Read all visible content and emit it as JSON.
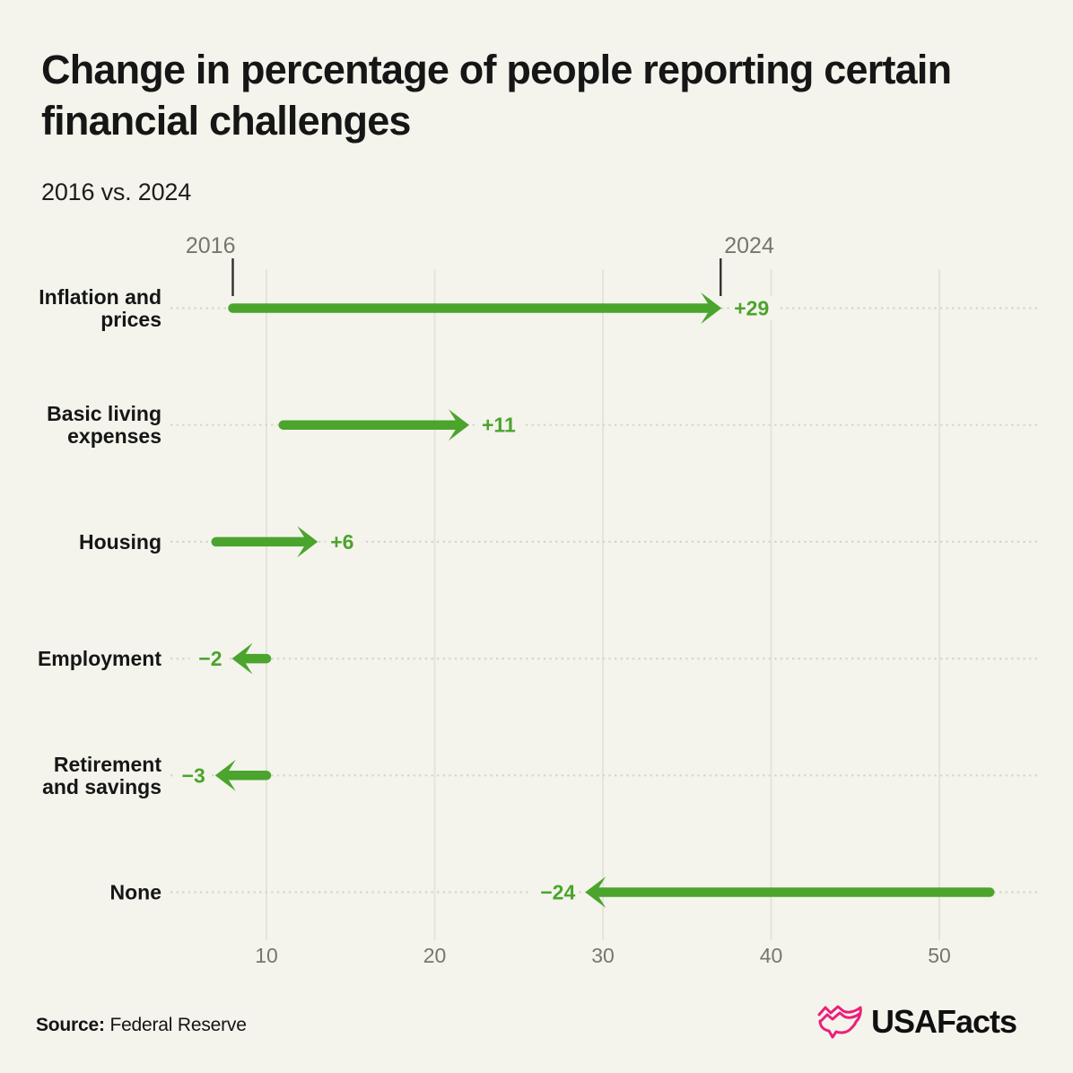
{
  "header": {
    "title": "Change in percentage of people reporting certain financial challenges",
    "subtitle": "2016 vs. 2024"
  },
  "chart_data": {
    "type": "arrow",
    "subtype": "horizontal-change-arrows (dumbbell, start year to end year)",
    "title": "Change in percentage of people reporting certain financial challenges",
    "subtitle": "2016 vs. 2024",
    "start_year_label": "2016",
    "end_year_label": "2024",
    "categories": [
      "Inflation and prices",
      "Basic living expenses",
      "Housing",
      "Employment",
      "Retirement and savings",
      "None"
    ],
    "category_label_lines": [
      [
        "Inflation and",
        "prices"
      ],
      [
        "Basic living",
        "expenses"
      ],
      [
        "Housing"
      ],
      [
        "Employment"
      ],
      [
        "Retirement",
        "and savings"
      ],
      [
        "None"
      ]
    ],
    "series": [
      {
        "name": "2016",
        "values": [
          8,
          11,
          7,
          10,
          10,
          53
        ]
      },
      {
        "name": "2024",
        "values": [
          37,
          22,
          13,
          8,
          7,
          29
        ]
      }
    ],
    "change_labels": [
      "+29",
      "+11",
      "+6",
      "−2",
      "−3",
      "−24"
    ],
    "x_ticks": [
      10,
      20,
      30,
      40,
      50
    ],
    "x_range": [
      4,
      56
    ],
    "xlabel": "",
    "ylabel": "",
    "grid": "solid vertical gridlines, dotted horizontal row guides",
    "legend_position": "year ticks annotated above first row"
  },
  "footer": {
    "source_label": "Source:",
    "source_value": "Federal Reserve",
    "logo_text": "USAFacts"
  },
  "colors": {
    "background": "#f4f4ed",
    "arrow_green": "#4ba42c",
    "text_dark": "#161616",
    "text_gray": "#76766f",
    "gridline": "#e4e4db",
    "dotted_guide": "#d6d6cc",
    "year_tick": "#30302c",
    "logo_pink": "#ec1e79"
  }
}
